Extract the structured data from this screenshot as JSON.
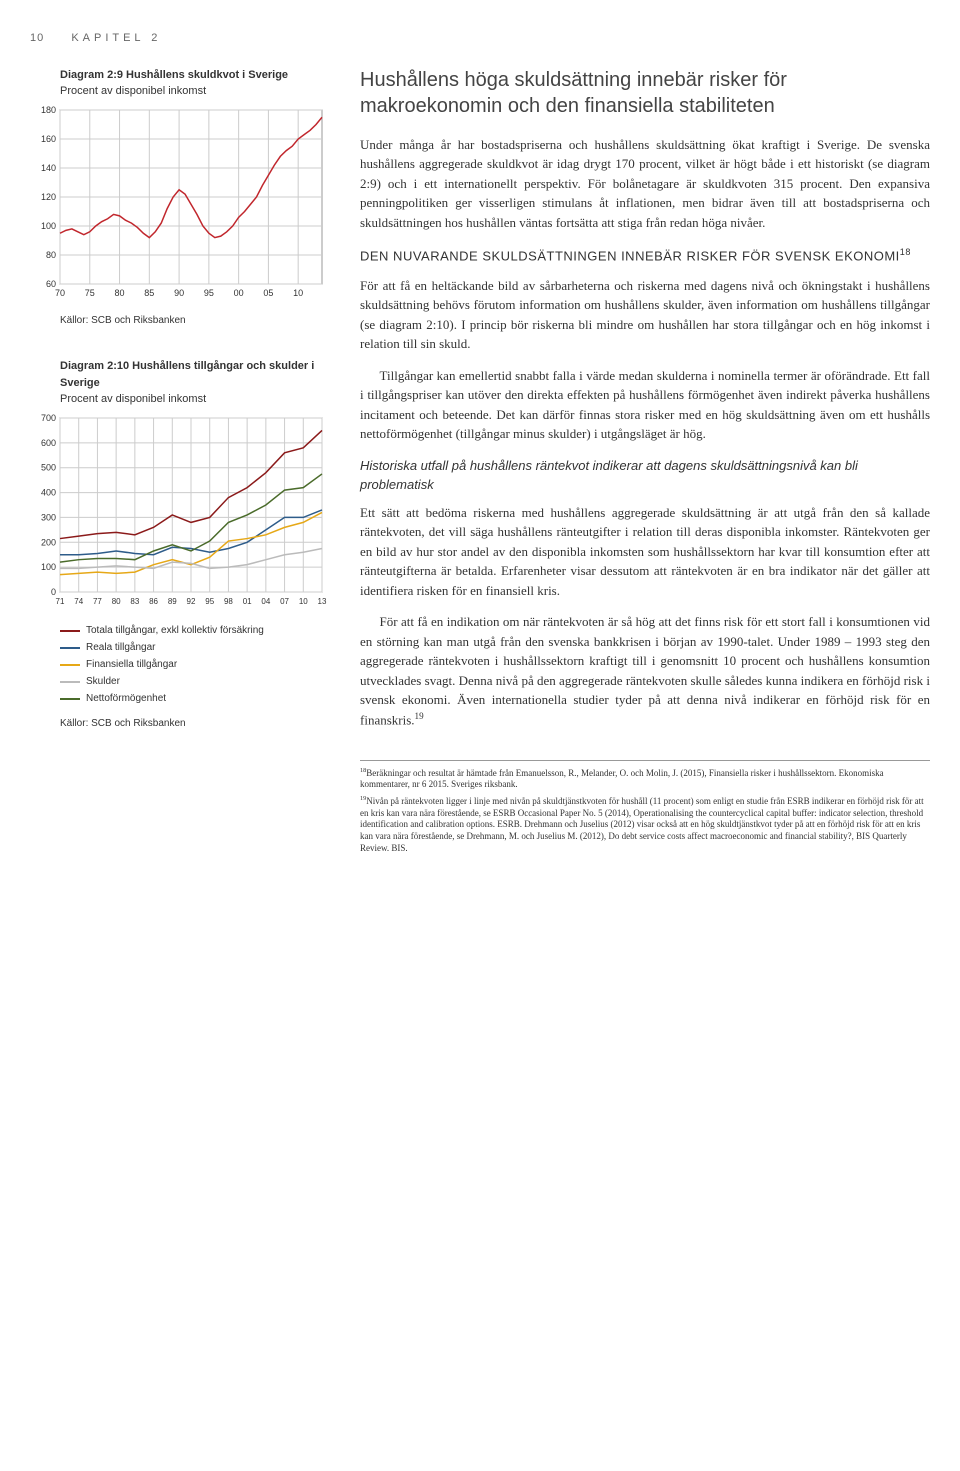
{
  "page": {
    "number": "10",
    "chapter": "KAPITEL 2"
  },
  "chart29": {
    "title": "Diagram 2:9 Hushållens skuldkvot i Sverige",
    "subtitle": "Procent av disponibel inkomst",
    "source": "Källor: SCB och Riksbanken",
    "type": "line",
    "xlim": [
      70,
      14
    ],
    "ylim": [
      60,
      180
    ],
    "ytick_step": 20,
    "xticks": [
      "70",
      "75",
      "80",
      "85",
      "90",
      "95",
      "00",
      "05",
      "10"
    ],
    "yticks": [
      60,
      80,
      100,
      120,
      140,
      160,
      180
    ],
    "line_color": "#c1272d",
    "grid_color": "#cccccc",
    "background_color": "#ffffff",
    "data": [
      [
        70,
        95
      ],
      [
        71,
        97
      ],
      [
        72,
        98
      ],
      [
        73,
        96
      ],
      [
        74,
        94
      ],
      [
        75,
        96
      ],
      [
        76,
        100
      ],
      [
        77,
        103
      ],
      [
        78,
        105
      ],
      [
        79,
        108
      ],
      [
        80,
        107
      ],
      [
        81,
        104
      ],
      [
        82,
        102
      ],
      [
        83,
        99
      ],
      [
        84,
        95
      ],
      [
        85,
        92
      ],
      [
        86,
        96
      ],
      [
        87,
        102
      ],
      [
        88,
        112
      ],
      [
        89,
        120
      ],
      [
        90,
        125
      ],
      [
        91,
        122
      ],
      [
        92,
        115
      ],
      [
        93,
        108
      ],
      [
        94,
        100
      ],
      [
        95,
        95
      ],
      [
        96,
        92
      ],
      [
        97,
        93
      ],
      [
        98,
        96
      ],
      [
        99,
        100
      ],
      [
        100,
        106
      ],
      [
        101,
        110
      ],
      [
        102,
        115
      ],
      [
        103,
        120
      ],
      [
        104,
        128
      ],
      [
        105,
        135
      ],
      [
        106,
        142
      ],
      [
        107,
        148
      ],
      [
        108,
        152
      ],
      [
        109,
        155
      ],
      [
        110,
        160
      ],
      [
        111,
        163
      ],
      [
        112,
        166
      ],
      [
        113,
        170
      ],
      [
        114,
        175
      ]
    ]
  },
  "chart210": {
    "title": "Diagram 2:10 Hushållens tillgångar och skulder i Sverige",
    "subtitle": "Procent av disponibel inkomst",
    "source": "Källor: SCB och Riksbanken",
    "type": "line",
    "xlim": [
      71,
      13
    ],
    "ylim": [
      0,
      700
    ],
    "ytick_step": 100,
    "xticks": [
      "71",
      "74",
      "77",
      "80",
      "83",
      "86",
      "89",
      "92",
      "95",
      "98",
      "01",
      "04",
      "07",
      "10",
      "13"
    ],
    "yticks": [
      0,
      100,
      200,
      300,
      400,
      500,
      600,
      700
    ],
    "grid_color": "#cccccc",
    "series": [
      {
        "label": "Totala tillgångar, exkl kollektiv försäkring",
        "color": "#8b1a1a",
        "data": [
          [
            71,
            215
          ],
          [
            74,
            225
          ],
          [
            77,
            235
          ],
          [
            80,
            240
          ],
          [
            83,
            230
          ],
          [
            86,
            260
          ],
          [
            89,
            310
          ],
          [
            92,
            280
          ],
          [
            95,
            300
          ],
          [
            98,
            380
          ],
          [
            101,
            420
          ],
          [
            104,
            480
          ],
          [
            107,
            560
          ],
          [
            110,
            580
          ],
          [
            113,
            650
          ]
        ]
      },
      {
        "label": "Reala tillgångar",
        "color": "#2e5c8a",
        "data": [
          [
            71,
            150
          ],
          [
            74,
            150
          ],
          [
            77,
            155
          ],
          [
            80,
            165
          ],
          [
            83,
            155
          ],
          [
            86,
            150
          ],
          [
            89,
            180
          ],
          [
            92,
            175
          ],
          [
            95,
            160
          ],
          [
            98,
            175
          ],
          [
            101,
            200
          ],
          [
            104,
            250
          ],
          [
            107,
            300
          ],
          [
            110,
            300
          ],
          [
            113,
            330
          ]
        ]
      },
      {
        "label": "Finansiella tillgångar",
        "color": "#e6a817",
        "data": [
          [
            71,
            70
          ],
          [
            74,
            75
          ],
          [
            77,
            80
          ],
          [
            80,
            75
          ],
          [
            83,
            80
          ],
          [
            86,
            110
          ],
          [
            89,
            130
          ],
          [
            92,
            110
          ],
          [
            95,
            140
          ],
          [
            98,
            205
          ],
          [
            101,
            215
          ],
          [
            104,
            230
          ],
          [
            107,
            260
          ],
          [
            110,
            280
          ],
          [
            113,
            320
          ]
        ]
      },
      {
        "label": "Skulder",
        "color": "#bbbbbb",
        "data": [
          [
            71,
            95
          ],
          [
            74,
            95
          ],
          [
            77,
            100
          ],
          [
            80,
            105
          ],
          [
            83,
            100
          ],
          [
            86,
            95
          ],
          [
            89,
            120
          ],
          [
            92,
            115
          ],
          [
            95,
            95
          ],
          [
            98,
            100
          ],
          [
            101,
            110
          ],
          [
            104,
            130
          ],
          [
            107,
            150
          ],
          [
            110,
            160
          ],
          [
            113,
            175
          ]
        ]
      },
      {
        "label": "Nettoförmögenhet",
        "color": "#4a6b2a",
        "data": [
          [
            71,
            120
          ],
          [
            74,
            130
          ],
          [
            77,
            135
          ],
          [
            80,
            135
          ],
          [
            83,
            130
          ],
          [
            86,
            165
          ],
          [
            89,
            190
          ],
          [
            92,
            165
          ],
          [
            95,
            205
          ],
          [
            98,
            280
          ],
          [
            101,
            310
          ],
          [
            104,
            350
          ],
          [
            107,
            410
          ],
          [
            110,
            420
          ],
          [
            113,
            475
          ]
        ]
      }
    ]
  },
  "text": {
    "heading_main": "Hushållens höga skuldsättning innebär risker för makroekonomin och den finansiella stabiliteten",
    "para1": "Under många år har bostadspriserna och hushållens skuldsättning ökat kraftigt i Sverige. De svenska hushållens aggregerade skuldkvot är idag drygt 170 procent, vilket är högt både i ett historiskt (se diagram 2:9) och i ett internationellt perspektiv. För bolånetagare är skuldkvoten 315 procent. Den expansiva penningpolitiken ger visserligen stimulans åt inflationen, men bidrar även till att bostadspriserna och skuldsättningen hos hushållen väntas fortsätta att stiga från redan höga nivåer.",
    "sub1": "DEN NUVARANDE SKULDSÄTTNINGEN INNEBÄR RISKER FÖR SVENSK EKONOMI",
    "sub1_ref": "18",
    "para2": "För att få en heltäckande bild av sårbarheterna och riskerna med dagens nivå och ökningstakt i hushållens skuldsättning behövs förutom information om hushållens skulder, även information om hushållens tillgångar (se diagram 2:10). I princip bör riskerna bli mindre om hushållen har stora tillgångar och en hög inkomst i relation till sin skuld.",
    "para3": "Tillgångar kan emellertid snabbt falla i värde medan skulderna i nominella termer är oförändrade. Ett fall i tillgångspriser kan utöver den direkta effekten på hushållens förmögenhet även indirekt påverka hushållens incitament och beteende. Det kan därför finnas stora risker med en hög skuldsättning även om ett hushålls nettoförmögenhet (tillgångar minus skulder) i utgångsläget är hög.",
    "italic_sub": "Historiska utfall på hushållens räntekvot indikerar att dagens skuldsättningsnivå kan bli problematisk",
    "para4": "Ett sätt att bedöma riskerna med hushållens aggregerade skuldsättning är att utgå från den så kallade räntekvoten, det vill säga hushållens ränteutgifter i relation till deras disponibla inkomster. Räntekvoten ger en bild av hur stor andel av den disponibla inkomsten som hushållssektorn har kvar till konsumtion efter att ränteutgifterna är betalda. Erfarenheter visar dessutom att räntekvoten är en bra indikator när det gäller att identifiera risken för en finansiell kris.",
    "para5": "För att få en indikation om när räntekvoten är så hög att det finns risk för ett stort fall i konsumtionen vid en störning kan man utgå från den svenska bankkrisen i början av 1990-talet. Under 1989 – 1993 steg den aggregerade räntekvoten i hushållssektorn kraftigt till i genomsnitt 10 procent och hushållens konsumtion utvecklades svagt. Denna nivå på den aggregerade räntekvoten skulle således kunna indikera en förhöjd risk i svensk ekonomi. Även internationella studier tyder på att denna nivå indikerar en förhöjd risk för en finanskris.",
    "para5_ref": "19"
  },
  "footnotes": {
    "fn18": "Beräkningar och resultat är hämtade från Emanuelsson, R., Melander, O. och Molin, J. (2015), Finansiella risker i hushållssektorn. Ekonomiska kommentarer, nr 6 2015. Sveriges riksbank.",
    "fn18_num": "18",
    "fn19": "Nivån på räntekvoten ligger i linje med nivån på skuldtjänstkvoten för hushåll (11 procent) som enligt en studie från ESRB indikerar en förhöjd risk för att en kris kan vara nära förestående, se ESRB Occasional Paper No. 5 (2014), Operationalising the countercyclical capital buffer: indicator selection, threshold identification and calibration options. ESRB. Drehmann och Juselius (2012) visar också att en hög skuldtjänstkvot tyder på att en förhöjd risk för att en kris kan vara nära förestående, se Drehmann, M. och Juselius M. (2012), Do debt service costs affect macroeconomic and financial stability?, BIS Quarterly Review. BIS.",
    "fn19_num": "19"
  }
}
